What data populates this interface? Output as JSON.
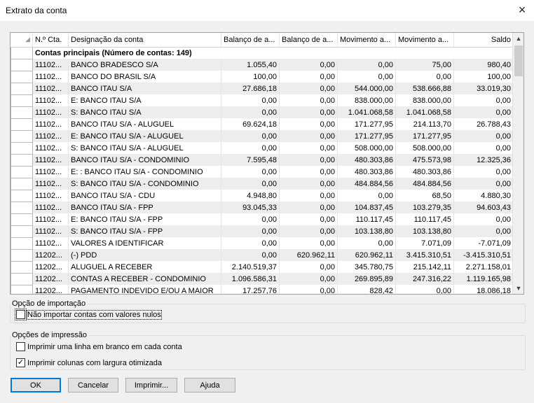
{
  "window": {
    "title": "Extrato da conta",
    "close_icon": "×"
  },
  "grid": {
    "columns": [
      "N.º Cta.",
      "Designação da conta",
      "Balanço de a...",
      "Balanço de a...",
      "Movimento a...",
      "Movimento a...",
      "Saldo"
    ],
    "group_label": "Contas principais (Número de contas: 149)",
    "rows": [
      [
        "11102...",
        "BANCO BRADESCO S/A",
        "1.055,40",
        "0,00",
        "0,00",
        "75,00",
        "980,40"
      ],
      [
        "11102...",
        "BANCO DO BRASIL S/A",
        "100,00",
        "0,00",
        "0,00",
        "0,00",
        "100,00"
      ],
      [
        "11102...",
        "BANCO ITAU S/A",
        "27.686,18",
        "0,00",
        "544.000,00",
        "538.666,88",
        "33.019,30"
      ],
      [
        "11102...",
        "E: BANCO ITAU S/A",
        "0,00",
        "0,00",
        "838.000,00",
        "838.000,00",
        "0,00"
      ],
      [
        "11102...",
        "S: BANCO ITAU S/A",
        "0,00",
        "0,00",
        "1.041.068,58",
        "1.041.068,58",
        "0,00"
      ],
      [
        "11102...",
        "BANCO ITAU S/A - ALUGUEL",
        "69.624,18",
        "0,00",
        "171.277,95",
        "214.113,70",
        "26.788,43"
      ],
      [
        "11102...",
        "E: BANCO ITAU S/A - ALUGUEL",
        "0,00",
        "0,00",
        "171.277,95",
        "171.277,95",
        "0,00"
      ],
      [
        "11102...",
        "S: BANCO ITAU S/A - ALUGUEL",
        "0,00",
        "0,00",
        "508.000,00",
        "508.000,00",
        "0,00"
      ],
      [
        "11102...",
        "BANCO ITAU S/A - CONDOMINIO",
        "7.595,48",
        "0,00",
        "480.303,86",
        "475.573,98",
        "12.325,36"
      ],
      [
        "11102...",
        "E: : BANCO ITAU S/A - CONDOMINIO",
        "0,00",
        "0,00",
        "480.303,86",
        "480.303,86",
        "0,00"
      ],
      [
        "11102...",
        "S: BANCO ITAU S/A - CONDOMINIO",
        "0,00",
        "0,00",
        "484.884,56",
        "484.884,56",
        "0,00"
      ],
      [
        "11102...",
        "BANCO ITAU S/A - CDU",
        "4.948,80",
        "0,00",
        "0,00",
        "68,50",
        "4.880,30"
      ],
      [
        "11102...",
        "BANCO ITAU S/A - FPP",
        "93.045,33",
        "0,00",
        "104.837,45",
        "103.279,35",
        "94.603,43"
      ],
      [
        "11102...",
        "E: BANCO ITAU S/A - FPP",
        "0,00",
        "0,00",
        "110.117,45",
        "110.117,45",
        "0,00"
      ],
      [
        "11102...",
        "S: BANCO ITAU S/A - FPP",
        "0,00",
        "0,00",
        "103.138,80",
        "103.138,80",
        "0,00"
      ],
      [
        "11102...",
        "VALORES A IDENTIFICAR",
        "0,00",
        "0,00",
        "0,00",
        "7.071,09",
        "-7.071,09"
      ],
      [
        "11202...",
        "(-) PDD",
        "0,00",
        "620.962,11",
        "620.962,11",
        "3.415.310,51",
        "-3.415.310,51"
      ],
      [
        "11202...",
        "ALUGUEL A RECEBER",
        "2.140.519,37",
        "0,00",
        "345.780,75",
        "215.142,11",
        "2.271.158,01"
      ],
      [
        "11202...",
        "CONTAS A RECEBER - CONDOMINIO",
        "1.096.586,31",
        "0,00",
        "269.895,89",
        "247.316,22",
        "1.119.165,98"
      ],
      [
        "11202...",
        "PAGAMENTO INDEVIDO E/OU A MAIOR",
        "17.257,76",
        "0,00",
        "828,42",
        "0,00",
        "18.086,18"
      ]
    ]
  },
  "import_options": {
    "legend": "Opção de importação",
    "skip_null_label": "Não importar contas com valores nulos",
    "skip_null_checked": false
  },
  "print_options": {
    "legend": "Opções de impressão",
    "blank_line_label": "Imprimir uma linha em branco em cada conta",
    "blank_line_checked": false,
    "optimized_width_label": "Imprimir colunas com largura otimizada",
    "optimized_width_checked": true
  },
  "buttons": {
    "ok": "OK",
    "cancel": "Cancelar",
    "print": "Imprimir...",
    "help": "Ajuda"
  }
}
